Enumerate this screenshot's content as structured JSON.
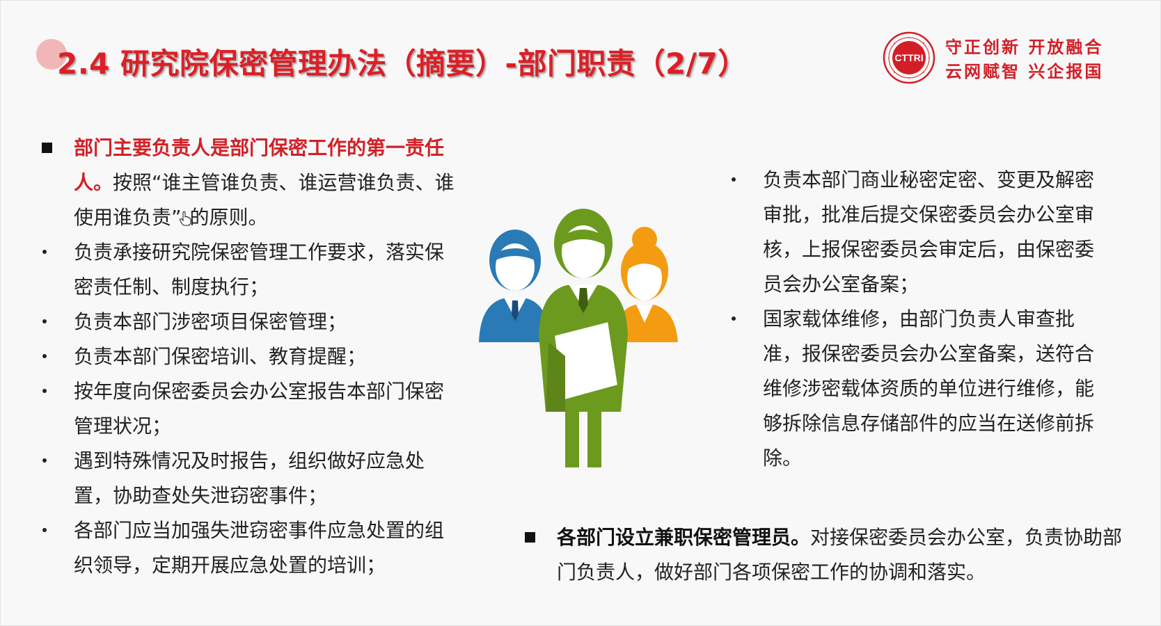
{
  "slide": {
    "title": "2.4 研究院保密管理办法（摘要）-部门职责（2/7）",
    "logo_text": "CTTRI",
    "motto_line1": "守正创新 开放融合",
    "motto_line2": "云网赋智 兴企报国",
    "colors": {
      "accent": "#dc1f26",
      "figure_blue": "#2a7bb5",
      "figure_green": "#6c9a1f",
      "figure_orange": "#f39c12"
    }
  },
  "left": {
    "lead_bold": "部门主要负责人是部门保密工作的第一责任人。",
    "lead_rest_before_cursor": "按照“谁主管谁负责、谁运营谁负责、谁使用谁负责”",
    "lead_rest_after_cursor": "的原则。",
    "bullets": [
      "负责承接研究院保密管理工作要求，落实保密责任制、制度执行；",
      "负责本部门涉密项目保密管理；",
      "负责本部门保密培训、教育提醒；",
      "按年度向保密委员会办公室报告本部门保密管理状况；",
      "遇到特殊情况及时报告，组织做好应急处置，协助查处失泄窃密事件；",
      "各部门应当加强失泄窃密事件应急处置的组织领导，定期开展应急处置的培训；"
    ]
  },
  "right": {
    "bullets": [
      "负责本部门商业秘密定密、变更及解密审批，批准后提交保密委员会办公室审核，上报保密委员会审定后，由保密委员会办公室备案；",
      "国家载体维修，由部门负责人审查批准，报保密委员会办公室备案，送符合维修涉密载体资质的单位进行维修，能够拆除信息存储部件的应当在送修前拆除。"
    ]
  },
  "bottom": {
    "bold": "各部门设立兼职保密管理员。",
    "rest": "对接保密委员会办公室，负责协助部门负责人，做好部门各项保密工作的协调和落实。"
  }
}
